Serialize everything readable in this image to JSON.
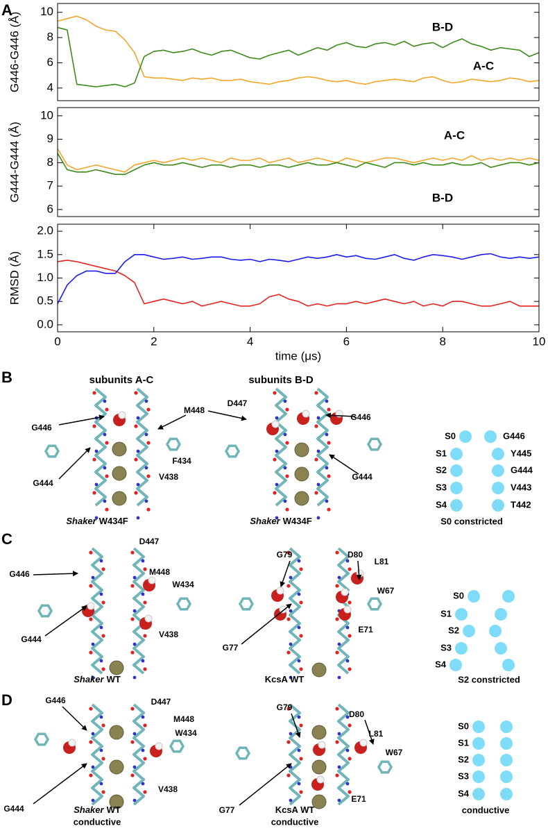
{
  "panel_a": {
    "label": "A"
  },
  "chart_data": [
    {
      "type": "line",
      "ylabel": "G446-G446 (Å)",
      "x": [
        0,
        0.2,
        0.4,
        0.6,
        0.8,
        1,
        1.2,
        1.4,
        1.6,
        1.8,
        2,
        2.2,
        2.4,
        2.6,
        2.8,
        3,
        3.2,
        3.4,
        3.6,
        3.8,
        4,
        4.2,
        4.4,
        4.6,
        4.8,
        5,
        5.2,
        5.4,
        5.6,
        5.8,
        6,
        6.2,
        6.4,
        6.6,
        6.8,
        7,
        7.2,
        7.4,
        7.6,
        7.8,
        8,
        8.2,
        8.4,
        8.6,
        8.8,
        9,
        9.2,
        9.4,
        9.6,
        9.8,
        10
      ],
      "series": [
        {
          "name": "A-C",
          "color": "#f4a52a",
          "values": [
            9.3,
            9.5,
            9.7,
            9.4,
            8.9,
            8.6,
            8.5,
            7.8,
            6.8,
            4.9,
            4.8,
            4.8,
            4.7,
            4.6,
            4.8,
            4.7,
            4.8,
            4.6,
            4.6,
            4.7,
            4.5,
            4.4,
            4.3,
            4.5,
            4.6,
            4.8,
            4.9,
            4.8,
            4.6,
            4.5,
            4.6,
            4.4,
            4.3,
            4.5,
            4.6,
            4.7,
            4.6,
            4.5,
            4.8,
            4.9,
            4.6,
            4.4,
            4.5,
            4.7,
            4.6,
            4.5,
            4.6,
            4.8,
            4.7,
            4.5,
            4.6
          ]
        },
        {
          "name": "B-D",
          "color": "#3d8a1a",
          "values": [
            8.8,
            8.6,
            4.3,
            4.2,
            4.1,
            4.2,
            4.3,
            4.1,
            4.4,
            6.5,
            6.9,
            7.0,
            6.8,
            6.9,
            7.1,
            6.8,
            6.6,
            6.9,
            7.0,
            6.7,
            6.4,
            6.3,
            6.6,
            6.8,
            7.0,
            6.6,
            6.9,
            7.2,
            7.0,
            7.4,
            7.6,
            7.3,
            7.2,
            7.5,
            7.6,
            7.4,
            7.7,
            7.3,
            7.5,
            7.6,
            7.2,
            7.6,
            7.9,
            7.5,
            7.3,
            7.0,
            7.2,
            7.1,
            7.0,
            6.5,
            6.8
          ]
        }
      ],
      "xlim": [
        0,
        10
      ],
      "ylim": [
        3,
        10.7
      ],
      "yticks": [
        4,
        6,
        8,
        10
      ]
    },
    {
      "type": "line",
      "ylabel": "G444-G444 (Å)",
      "x": [
        0,
        0.2,
        0.4,
        0.6,
        0.8,
        1,
        1.2,
        1.4,
        1.6,
        1.8,
        2,
        2.2,
        2.4,
        2.6,
        2.8,
        3,
        3.2,
        3.4,
        3.6,
        3.8,
        4,
        4.2,
        4.4,
        4.6,
        4.8,
        5,
        5.2,
        5.4,
        5.6,
        5.8,
        6,
        6.2,
        6.4,
        6.6,
        6.8,
        7,
        7.2,
        7.4,
        7.6,
        7.8,
        8,
        8.2,
        8.4,
        8.6,
        8.8,
        9,
        9.2,
        9.4,
        9.6,
        9.8,
        10
      ],
      "series": [
        {
          "name": "A-C",
          "color": "#f4a52a",
          "values": [
            8.6,
            7.9,
            7.7,
            7.8,
            7.9,
            7.8,
            7.7,
            7.6,
            7.9,
            8.0,
            8.1,
            8.0,
            8.1,
            8.2,
            8.1,
            8.2,
            8.1,
            8.0,
            8.2,
            8.1,
            8.1,
            8.2,
            8.0,
            8.1,
            8.2,
            8.0,
            8.1,
            8.2,
            8.1,
            8.0,
            8.2,
            8.1,
            8.0,
            8.1,
            8.2,
            8.2,
            8.1,
            8.0,
            8.1,
            8.2,
            8.1,
            8.2,
            8.1,
            8.3,
            8.1,
            8.2,
            8.1,
            8.2,
            8.1,
            8.2,
            8.1
          ]
        },
        {
          "name": "B-D",
          "color": "#3d8a1a",
          "values": [
            8.4,
            7.7,
            7.6,
            7.6,
            7.7,
            7.6,
            7.5,
            7.5,
            7.7,
            7.9,
            8.0,
            7.9,
            7.9,
            8.0,
            7.9,
            7.8,
            7.9,
            7.9,
            7.8,
            7.9,
            7.9,
            7.8,
            7.9,
            7.9,
            7.8,
            7.9,
            8.0,
            7.9,
            7.9,
            8.0,
            7.9,
            7.8,
            8.0,
            7.9,
            7.8,
            8.0,
            8.0,
            7.9,
            8.0,
            7.9,
            7.9,
            8.0,
            7.9,
            7.9,
            8.0,
            7.8,
            7.9,
            8.0,
            8.0,
            7.9,
            8.0
          ]
        }
      ],
      "xlim": [
        0,
        10
      ],
      "ylim": [
        5.7,
        10.35
      ],
      "yticks": [
        6,
        7,
        8,
        9,
        10
      ]
    },
    {
      "type": "line",
      "ylabel": "RMSD (Å)",
      "xlabel": "time (μs)",
      "x": [
        0,
        0.2,
        0.4,
        0.6,
        0.8,
        1,
        1.2,
        1.4,
        1.6,
        1.8,
        2,
        2.2,
        2.4,
        2.6,
        2.8,
        3,
        3.2,
        3.4,
        3.6,
        3.8,
        4,
        4.2,
        4.4,
        4.6,
        4.8,
        5,
        5.2,
        5.4,
        5.6,
        5.8,
        6,
        6.2,
        6.4,
        6.6,
        6.8,
        7,
        7.2,
        7.4,
        7.6,
        7.8,
        8,
        8.2,
        8.4,
        8.6,
        8.8,
        9,
        9.2,
        9.4,
        9.6,
        9.8,
        10
      ],
      "series": [
        {
          "color": "#e8231d",
          "values": [
            1.35,
            1.38,
            1.35,
            1.3,
            1.25,
            1.2,
            1.15,
            1.05,
            0.9,
            0.45,
            0.5,
            0.55,
            0.5,
            0.45,
            0.5,
            0.4,
            0.45,
            0.5,
            0.45,
            0.4,
            0.4,
            0.45,
            0.6,
            0.65,
            0.55,
            0.5,
            0.4,
            0.45,
            0.4,
            0.45,
            0.45,
            0.5,
            0.45,
            0.5,
            0.55,
            0.5,
            0.45,
            0.5,
            0.4,
            0.45,
            0.4,
            0.5,
            0.5,
            0.45,
            0.4,
            0.4,
            0.45,
            0.5,
            0.4,
            0.4,
            0.4
          ]
        },
        {
          "color": "#1b1bf5",
          "values": [
            0.45,
            0.85,
            1.05,
            1.15,
            1.15,
            1.1,
            1.1,
            1.35,
            1.5,
            1.5,
            1.45,
            1.4,
            1.42,
            1.45,
            1.4,
            1.42,
            1.45,
            1.45,
            1.4,
            1.38,
            1.4,
            1.35,
            1.4,
            1.38,
            1.35,
            1.4,
            1.45,
            1.42,
            1.45,
            1.5,
            1.45,
            1.48,
            1.42,
            1.4,
            1.45,
            1.5,
            1.42,
            1.38,
            1.45,
            1.5,
            1.48,
            1.45,
            1.4,
            1.45,
            1.5,
            1.52,
            1.45,
            1.42,
            1.45,
            1.42,
            1.45
          ]
        }
      ],
      "xlim": [
        0,
        10
      ],
      "ylim": [
        -0.15,
        2.15
      ],
      "xticks": [
        0,
        2,
        4,
        6,
        8,
        10
      ],
      "yticks": [
        {
          "value": 0,
          "label": "0.0"
        },
        {
          "value": 0.5,
          "label": "0.5"
        },
        {
          "value": 1,
          "label": "1.0"
        },
        {
          "value": 1.5,
          "label": "1.5"
        },
        {
          "value": 2,
          "label": "2.0"
        }
      ]
    }
  ],
  "panels": [
    {
      "label": "B",
      "headers": [
        "subunits A-C",
        "subunits B-D"
      ],
      "residues": [
        "G446",
        "M448",
        "F434",
        "G444",
        "V438",
        "D447",
        "G446",
        "G444"
      ],
      "captions": [
        {
          "emph": "Shaker",
          "text": "W434F"
        },
        {
          "emph": "Shaker",
          "text": "W434F"
        }
      ],
      "sites": [
        "S0",
        "S1",
        "S2",
        "S3",
        "S4"
      ],
      "site_residues": [
        "G446",
        "Y445",
        "G444",
        "V443",
        "T442"
      ],
      "site_caption": "S0 constricted"
    },
    {
      "label": "C",
      "residues": [
        "D447",
        "G446",
        "M448",
        "W434",
        "G444",
        "V438",
        "G79",
        "D80",
        "L81",
        "W67",
        "E71",
        "G77"
      ],
      "captions": [
        {
          "emph": "Shaker",
          "text": "WT"
        },
        {
          "text": "KcsA WT"
        }
      ],
      "sites": [
        "S0",
        "S1",
        "S2",
        "S3",
        "S4"
      ],
      "site_caption": "S2 constricted"
    },
    {
      "label": "D",
      "residues": [
        "G446",
        "D447",
        "M448",
        "W434",
        "G444",
        "V438",
        "G79",
        "D80",
        "L81",
        "W67",
        "G77",
        "E71"
      ],
      "captions": [
        {
          "emph": "Shaker",
          "text": "WT",
          "line2": "conductive"
        },
        {
          "text": "KcsA WT",
          "line2": "conductive"
        }
      ],
      "sites": [
        "S0",
        "S1",
        "S2",
        "S3",
        "S4"
      ],
      "site_caption": "conductive"
    }
  ]
}
